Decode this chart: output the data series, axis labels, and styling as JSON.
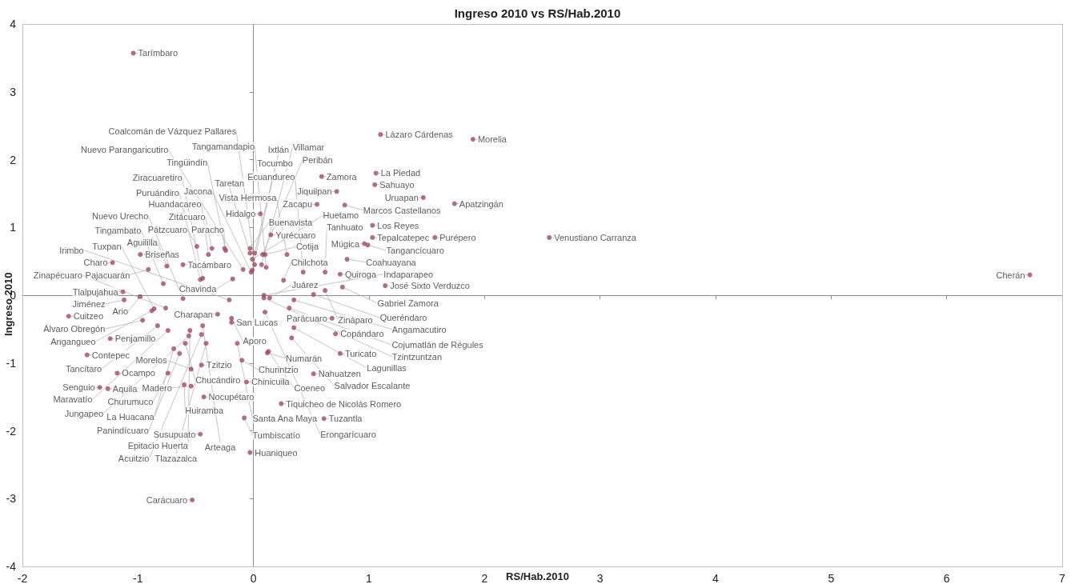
{
  "chart_data": {
    "type": "scatter",
    "title": "Ingreso 2010 vs RS/Hab.2010",
    "xlabel": "RS/Hab.2010",
    "ylabel": "Ingreso 2010",
    "color": "#9e4a5a",
    "marker": "circle",
    "xlim": [
      -2,
      7
    ],
    "xticks": [
      -2,
      -1,
      0,
      1,
      2,
      3,
      4,
      5,
      6,
      7
    ],
    "ylim": [
      -4,
      4
    ],
    "yticks": [
      -4,
      -3,
      -2,
      -1,
      0,
      1,
      2,
      3,
      4
    ],
    "value_labels": [
      "Paracho",
      "Tarímbaro",
      "Tingüindín",
      "Zitácuaro",
      "Huandacareo",
      "Pátzcuaro",
      "Ziracuaretiro",
      "Tacámbaro",
      "Aguililla",
      "Briseñas",
      "Pajacuarán",
      "Charo",
      "Tlalpujahua",
      "Tingambato",
      "Puruándiro",
      "Buenavista",
      "Taretan",
      "Huetamo",
      "Hidalgo",
      "Tocumbo",
      "Nuevo Parangaricutiro",
      "Coalcomán de Vázquez Pallares",
      "Jacona",
      "Villamar",
      "Chavinda",
      "Peribán",
      "Cotija",
      "Yurécuaro",
      "Tangamandapio",
      "Zamora",
      "Lázaro Cárdenas",
      "Morelia",
      "Jiquilpan",
      "La Piedad",
      "Sahuayo",
      "Uruapan",
      "Apatzingán",
      "Zacapu",
      "Marcos Castellanos",
      "Los Reyes",
      "Tepalcatepec",
      "Purépero",
      "Venustiano Carranza",
      "Vista Hermosa",
      "Tangancícuaro",
      "Múgica",
      "Tanhuato",
      "Quiroga",
      "Coahuayana",
      "José Sixto Verduzco",
      "Zináparo",
      "Ecuandureo",
      "Chilchota",
      "Gabriel Zamora",
      "Ixtlán",
      "Cherán",
      "Jiménez",
      "Ario",
      "Cuitzeo",
      "Angangueo",
      "Zinapécuaro",
      "Irimbo",
      "Tzintzuntzan",
      "Queréndaro",
      "Álvaro Obregón",
      "Charapan",
      "Erongarícuaro",
      "Parácuaro",
      "Arteaga",
      "Aporo",
      "San Lucas",
      "Penjamillo",
      "Acuitzio",
      "Salvador Escalante",
      "Copándaro",
      "Contepec",
      "Tuxpan",
      "Coeneo",
      "Santa Ana Maya",
      "Turicato",
      "Lagunillas",
      "Ocampo",
      "Tlazazalca",
      "Nahuatzen",
      "Senguio",
      "Aquila",
      "Angamacutiro",
      "Tumbiscatío",
      "Tuzantla",
      "Tancítaro",
      "Cojumatlán de Régules",
      "Huaniqueo",
      "Juárez",
      "Indaparapeo",
      "Maravatío",
      "Chucándiro",
      "Tzitzio",
      "Tiquicheo de Nicolás Romero",
      "La Huacana",
      "Jungapeo",
      "Carácuaro",
      "Susupuato",
      "Numarán",
      "Panindícuaro",
      "Epitacio Huerta",
      "Morelos",
      "Nuevo Urecho",
      "Nocupétaro",
      "Huiramba",
      "Madero",
      "Chinicuila",
      "Churintzio",
      "Churumuco"
    ],
    "x": [
      -0.25,
      -1.04,
      -0.24,
      -0.36,
      -0.39,
      -0.49,
      -0.44,
      -0.61,
      -0.75,
      -0.98,
      -0.91,
      -1.22,
      -1.13,
      -0.78,
      -0.46,
      -0.03,
      -0.03,
      -0.01,
      0.06,
      0.01,
      -0.09,
      0.01,
      -0.02,
      0.07,
      -0.18,
      0.08,
      0.1,
      0.15,
      0.11,
      0.59,
      1.1,
      1.9,
      0.72,
      1.06,
      1.05,
      1.47,
      1.74,
      0.55,
      0.79,
      1.03,
      1.03,
      1.57,
      2.56,
      0.29,
      0.99,
      0.96,
      0.62,
      0.75,
      0.81,
      1.14,
      0.62,
      0.43,
      0.26,
      0.77,
      -0.01,
      6.72,
      -1.12,
      -0.98,
      -1.6,
      -0.88,
      -0.76,
      -0.21,
      0.09,
      0.52,
      -0.96,
      -0.31,
      0.1,
      0.68,
      -0.44,
      -0.19,
      -0.19,
      -1.24,
      -0.45,
      0.33,
      0.71,
      -1.44,
      -0.86,
      0.13,
      -0.14,
      0.75,
      0.35,
      -1.18,
      -0.41,
      0.52,
      -1.33,
      -1.26,
      0.35,
      -0.08,
      0.61,
      -0.83,
      0.31,
      -0.03,
      0.14,
      0.09,
      -0.74,
      -0.59,
      -0.45,
      0.24,
      -0.69,
      -0.56,
      -0.53,
      -0.46,
      0.12,
      -0.64,
      -0.55,
      -0.54,
      -0.61,
      -0.43,
      -0.6,
      -0.54,
      -0.06,
      -0.1,
      -0.74
    ],
    "values": [
      0.69,
      3.57,
      0.66,
      0.69,
      0.6,
      0.72,
      0.25,
      0.45,
      0.43,
      0.6,
      0.38,
      0.48,
      0.05,
      0.17,
      0.23,
      0.69,
      0.62,
      0.53,
      1.2,
      0.62,
      0.38,
      0.45,
      0.34,
      0.45,
      0.24,
      0.6,
      0.6,
      0.89,
      0.41,
      1.75,
      2.37,
      2.3,
      1.53,
      1.8,
      1.63,
      1.44,
      1.35,
      1.34,
      1.33,
      1.03,
      0.85,
      0.85,
      0.85,
      0.6,
      0.74,
      0.76,
      0.34,
      0.31,
      0.53,
      0.14,
      0.07,
      0.34,
      0.22,
      0.12,
      0.37,
      0.3,
      -0.07,
      -0.02,
      -0.31,
      -0.23,
      -0.19,
      -0.07,
      -0.04,
      0.01,
      -0.37,
      -0.28,
      -0.25,
      -0.34,
      -0.45,
      -0.34,
      -0.4,
      -0.64,
      -0.58,
      -0.63,
      -0.57,
      -0.88,
      -0.2,
      -0.83,
      -0.71,
      -0.86,
      -0.48,
      -1.15,
      -0.71,
      -1.16,
      -1.36,
      -1.38,
      -0.07,
      -1.81,
      -1.82,
      -0.45,
      -0.19,
      -2.32,
      -0.04,
      0.0,
      -0.52,
      -0.71,
      -1.03,
      -1.6,
      -0.79,
      -0.6,
      -3.02,
      -2.05,
      -0.85,
      -0.86,
      -0.52,
      -1.09,
      -0.05,
      -1.5,
      -1.32,
      -1.34,
      -1.28,
      -0.96,
      -1.15
    ]
  }
}
